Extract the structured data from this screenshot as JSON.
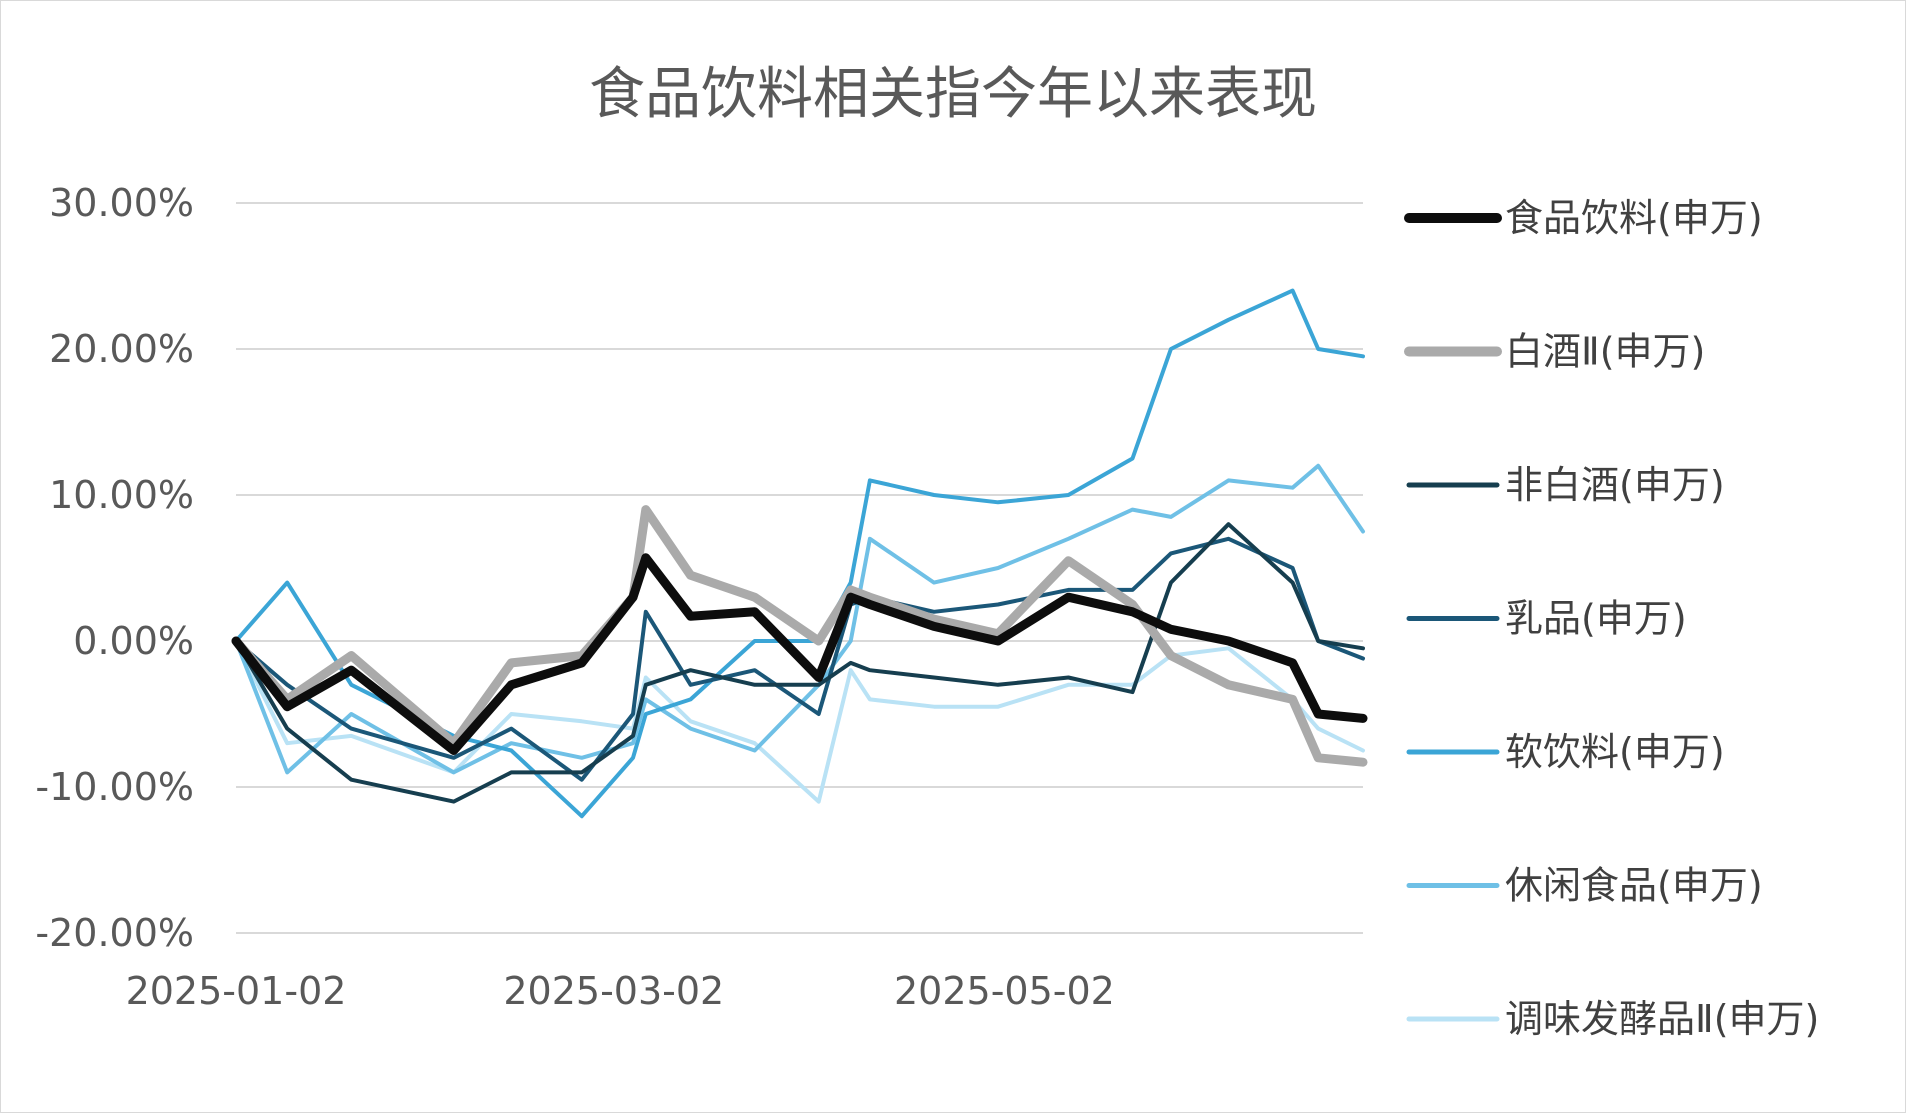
{
  "chart_data": {
    "type": "line",
    "title": "食品饮料相关指今年以来表现",
    "xlabel": "",
    "ylabel": "",
    "ylim": [
      -0.2,
      0.3
    ],
    "yticks": [
      0.3,
      0.2,
      0.1,
      0.0,
      -0.1,
      -0.2
    ],
    "ytick_labels": [
      "30.00%",
      "20.00%",
      "10.00%",
      "0.00%",
      "-10.00%",
      "-20.00%"
    ],
    "x_range": [
      "2025-01-02",
      "2025-06-27"
    ],
    "xtick_labels": [
      "2025-01-02",
      "2025-03-02",
      "2025-05-02"
    ],
    "grid": true,
    "legend_position": "right",
    "x": [
      "2025-01-02",
      "2025-01-10",
      "2025-01-20",
      "2025-02-05",
      "2025-02-14",
      "2025-02-25",
      "2025-03-05",
      "2025-03-07",
      "2025-03-14",
      "2025-03-24",
      "2025-04-03",
      "2025-04-08",
      "2025-04-11",
      "2025-04-21",
      "2025-05-01",
      "2025-05-12",
      "2025-05-22",
      "2025-05-28",
      "2025-06-06",
      "2025-06-16",
      "2025-06-20",
      "2025-06-27"
    ],
    "series": [
      {
        "name": "食品饮料(申万)",
        "color": "#0d0d0d",
        "width": 9,
        "values": [
          0.0,
          -0.045,
          -0.02,
          -0.075,
          -0.03,
          -0.015,
          0.03,
          0.057,
          0.017,
          0.02,
          -0.025,
          0.03,
          0.025,
          0.01,
          0.0,
          0.03,
          0.02,
          0.008,
          0.0,
          -0.015,
          -0.05,
          -0.053
        ]
      },
      {
        "name": "白酒Ⅱ(申万)",
        "color": "#aaaaaa",
        "width": 9,
        "values": [
          0.0,
          -0.04,
          -0.01,
          -0.07,
          -0.015,
          -0.01,
          0.03,
          0.09,
          0.045,
          0.03,
          0.0,
          0.035,
          0.03,
          0.015,
          0.005,
          0.055,
          0.025,
          -0.01,
          -0.03,
          -0.04,
          -0.08,
          -0.083
        ]
      },
      {
        "name": "非白酒(申万)",
        "color": "#163e4f",
        "width": 4,
        "values": [
          0.0,
          -0.06,
          -0.095,
          -0.11,
          -0.09,
          -0.09,
          -0.065,
          -0.03,
          -0.02,
          -0.03,
          -0.03,
          -0.015,
          -0.02,
          -0.025,
          -0.03,
          -0.025,
          -0.035,
          0.04,
          0.08,
          0.04,
          0.0,
          -0.005
        ]
      },
      {
        "name": "乳品(申万)",
        "color": "#1b5778",
        "width": 4,
        "values": [
          0.0,
          -0.03,
          -0.06,
          -0.08,
          -0.06,
          -0.095,
          -0.05,
          0.02,
          -0.03,
          -0.02,
          -0.05,
          0.025,
          0.03,
          0.02,
          0.025,
          0.035,
          0.035,
          0.06,
          0.07,
          0.05,
          0.0,
          -0.012
        ]
      },
      {
        "name": "软饮料(申万)",
        "color": "#3ba5d6",
        "width": 4,
        "values": [
          0.0,
          0.04,
          -0.03,
          -0.065,
          -0.075,
          -0.12,
          -0.08,
          -0.05,
          -0.04,
          0.0,
          0.0,
          0.04,
          0.11,
          0.1,
          0.095,
          0.1,
          0.125,
          0.2,
          0.22,
          0.24,
          0.2,
          0.195
        ]
      },
      {
        "name": "休闲食品(申万)",
        "color": "#6fc0e6",
        "width": 4,
        "values": [
          0.0,
          -0.09,
          -0.05,
          -0.09,
          -0.07,
          -0.08,
          -0.07,
          -0.04,
          -0.06,
          -0.075,
          -0.03,
          0.0,
          0.07,
          0.04,
          0.05,
          0.07,
          0.09,
          0.085,
          0.11,
          0.105,
          0.12,
          0.075
        ]
      },
      {
        "name": "调味发酵品Ⅱ(申万)",
        "color": "#b9e2f5",
        "width": 4,
        "values": [
          0.0,
          -0.07,
          -0.065,
          -0.09,
          -0.05,
          -0.055,
          -0.06,
          -0.025,
          -0.055,
          -0.07,
          -0.11,
          -0.02,
          -0.04,
          -0.045,
          -0.045,
          -0.03,
          -0.03,
          -0.01,
          -0.005,
          -0.04,
          -0.06,
          -0.075
        ]
      }
    ]
  }
}
